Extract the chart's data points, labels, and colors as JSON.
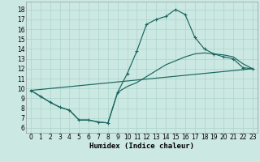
{
  "bg_color": "#cce8e2",
  "grid_color": "#aad4cc",
  "line_color": "#1a6660",
  "xlabel": "Humidex (Indice chaleur)",
  "xlabel_fontsize": 6.5,
  "tick_fontsize": 5.5,
  "xlim": [
    -0.5,
    23.5
  ],
  "ylim": [
    5.5,
    18.8
  ],
  "xticks": [
    0,
    1,
    2,
    3,
    4,
    5,
    6,
    7,
    8,
    9,
    10,
    11,
    12,
    13,
    14,
    15,
    16,
    17,
    18,
    19,
    20,
    21,
    22,
    23
  ],
  "yticks": [
    6,
    7,
    8,
    9,
    10,
    11,
    12,
    13,
    14,
    15,
    16,
    17,
    18
  ],
  "curve1_x": [
    0,
    1,
    2,
    3,
    4,
    5,
    6,
    7,
    8,
    9,
    10,
    11,
    12,
    13,
    14,
    15,
    16,
    17,
    18,
    19,
    20,
    21,
    22,
    23
  ],
  "curve1_y": [
    9.8,
    9.2,
    8.6,
    8.1,
    7.8,
    6.8,
    6.8,
    6.6,
    6.5,
    9.6,
    11.5,
    13.8,
    16.5,
    17.0,
    17.3,
    18.0,
    17.5,
    15.2,
    14.0,
    13.5,
    13.2,
    13.0,
    12.1,
    12.0
  ],
  "curve2_x": [
    0,
    1,
    2,
    3,
    4,
    5,
    6,
    7,
    8,
    9,
    10,
    11,
    12,
    13,
    14,
    15,
    16,
    17,
    18,
    19,
    20,
    21,
    22,
    23
  ],
  "curve2_y": [
    9.8,
    9.2,
    8.6,
    8.1,
    7.8,
    6.8,
    6.8,
    6.6,
    6.5,
    9.6,
    10.2,
    10.6,
    11.2,
    11.8,
    12.4,
    12.8,
    13.2,
    13.5,
    13.6,
    13.5,
    13.4,
    13.2,
    12.5,
    12.0
  ],
  "curve3_x": [
    0,
    23
  ],
  "curve3_y": [
    9.8,
    12.0
  ]
}
